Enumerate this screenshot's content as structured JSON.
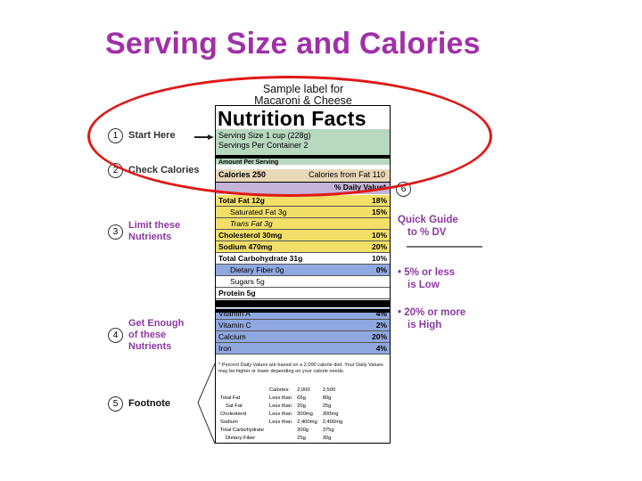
{
  "slide": {
    "title": "Serving Size and Calories"
  },
  "label_caption": {
    "line1": "Sample label for",
    "line2": "Macaroni & Cheese"
  },
  "label": {
    "heading": "Nutrition Facts",
    "serving_size": "Serving Size 1 cup (228g)",
    "servings_per_container": "Servings Per Container  2",
    "amount_per_serving": "Amount Per Serving",
    "calories": "Calories 250",
    "calories_from_fat": "Calories from Fat 110",
    "daily_value_header": "% Daily Value*",
    "nutrients": [
      {
        "name": "Total Fat 12g",
        "pct": "18%",
        "indent": false,
        "bold": true,
        "color": "yellow"
      },
      {
        "name": "Saturated Fat 3g",
        "pct": "15%",
        "indent": true,
        "bold": false,
        "color": "yellow"
      },
      {
        "name": "Trans Fat 3g",
        "pct": "",
        "indent": true,
        "bold": false,
        "color": "yellow",
        "italic": true
      },
      {
        "name": "Cholesterol 30mg",
        "pct": "10%",
        "indent": false,
        "bold": true,
        "color": "yellow"
      },
      {
        "name": "Sodium 470mg",
        "pct": "20%",
        "indent": false,
        "bold": true,
        "color": "yellow"
      },
      {
        "name": "Total Carbohydrate 31g",
        "pct": "10%",
        "indent": false,
        "bold": true,
        "color": "white"
      },
      {
        "name": "Dietary Fiber 0g",
        "pct": "0%",
        "indent": true,
        "bold": false,
        "color": "blue"
      },
      {
        "name": "Sugars 5g",
        "pct": "",
        "indent": true,
        "bold": false,
        "color": "white"
      },
      {
        "name": "Protein 5g",
        "pct": "",
        "indent": false,
        "bold": true,
        "color": "white"
      },
      {
        "name": "Vitamin A",
        "pct": "4%",
        "indent": false,
        "bold": false,
        "color": "blue"
      },
      {
        "name": "Vitamin C",
        "pct": "2%",
        "indent": false,
        "bold": false,
        "color": "blue"
      },
      {
        "name": "Calcium",
        "pct": "20%",
        "indent": false,
        "bold": false,
        "color": "blue"
      },
      {
        "name": "Iron",
        "pct": "4%",
        "indent": false,
        "bold": false,
        "color": "blue"
      }
    ],
    "footnote_text": "* Percent Daily Values are based on a 2,000 calorie diet. Your Daily Values may be higher or lower depending on your calorie needs.",
    "footnote_table": {
      "header": [
        "",
        "Calories:",
        "2,000",
        "2,500"
      ],
      "rows": [
        [
          "Total Fat",
          "Less than",
          "65g",
          "80g"
        ],
        [
          "  Sat Fat",
          "Less than",
          "20g",
          "25g"
        ],
        [
          "Cholesterol",
          "Less than",
          "300mg",
          "300mg"
        ],
        [
          "Sodium",
          "Less than",
          "2,400mg",
          "2,400mg"
        ],
        [
          "Total Carbohydrate",
          "",
          "300g",
          "375g"
        ],
        [
          "  Dietary Fiber",
          "",
          "25g",
          "30g"
        ]
      ]
    }
  },
  "steps": [
    {
      "num": "1",
      "line1": "Start Here",
      "line2": "",
      "color": "#333333"
    },
    {
      "num": "2",
      "line1": "Check Calories",
      "line2": "",
      "color": "#333333"
    },
    {
      "num": "3",
      "line1": "Limit these",
      "line2": "Nutrients",
      "color": "#8b3aa0"
    },
    {
      "num": "4",
      "line1": "Get Enough",
      "line2": "of these",
      "line3": "Nutrients",
      "color": "#8b3aa0"
    },
    {
      "num": "5",
      "line1": "Footnote",
      "line2": "",
      "color": "#111111"
    }
  ],
  "quick_guide": {
    "num": "6",
    "title_line1": "Quick Guide",
    "title_line2": "to % DV",
    "low_line1": "• 5% or less",
    "low_line2": "is Low",
    "high_line1": "• 20% or more",
    "high_line2": "is High"
  },
  "colors": {
    "title": "#a030a8",
    "serving_band": "#b8d8c0",
    "calories_band": "#e8d8b8",
    "limit_band": "#f2df68",
    "enough_band": "#90a8e0",
    "dv_band": "#c4b4d8",
    "highlight_oval": "#e01818"
  }
}
